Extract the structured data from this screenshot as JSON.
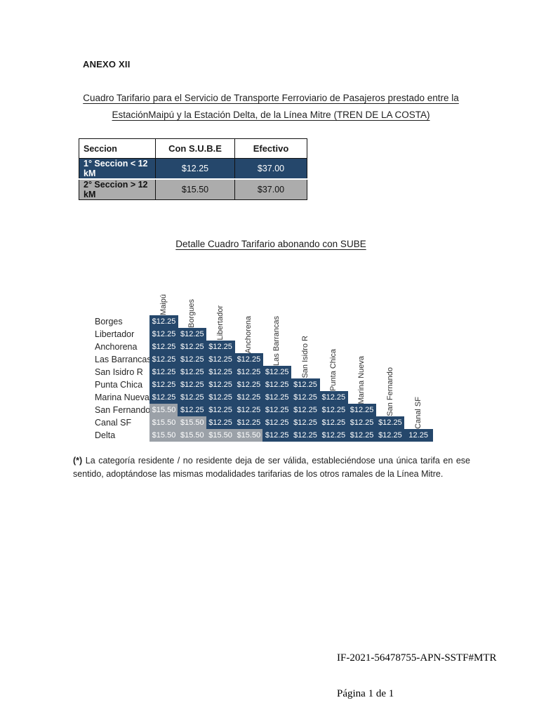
{
  "page": {
    "annex": "ANEXO XII",
    "title_line1": "Cuadro Tarifario para el Servicio de Transporte Ferroviario de Pasajeros prestado entre la",
    "title_line2": "EstaciónMaipú y la Estación Delta, de la Línea Mitre (TREN DE LA COSTA)"
  },
  "fare_table": {
    "headers": [
      "Seccion",
      "Con S.U.B.E",
      "Efectivo"
    ],
    "rows": [
      {
        "label": "1° Seccion < 12 kM",
        "con_sube": "$12.25",
        "efectivo": "$37.00"
      },
      {
        "label": "2° Seccion > 12 kM",
        "con_sube": "$15.50",
        "efectivo": "$37.00"
      }
    ]
  },
  "sube_detail": {
    "heading": "Detalle Cuadro Tarifario abonando con SUBE"
  },
  "matrix": {
    "columns": [
      "Maipú",
      "Borgues",
      "Libertador",
      "Anchorena",
      "Las Barrancas",
      "San Isidro R",
      "Punta Chica",
      "Marina Nueva",
      "San Fernando",
      "Canal SF"
    ],
    "rows": [
      {
        "label": "Borges",
        "values": [
          "$12.25"
        ]
      },
      {
        "label": "Libertador",
        "values": [
          "$12.25",
          "$12.25"
        ]
      },
      {
        "label": "Anchorena",
        "values": [
          "$12.25",
          "$12.25",
          "$12.25"
        ]
      },
      {
        "label": "Las Barrancas",
        "values": [
          "$12.25",
          "$12.25",
          "$12.25",
          "$12.25"
        ]
      },
      {
        "label": "San Isidro R",
        "values": [
          "$12.25",
          "$12.25",
          "$12.25",
          "$12.25",
          "$12.25"
        ]
      },
      {
        "label": "Punta Chica",
        "values": [
          "$12.25",
          "$12.25",
          "$12.25",
          "$12.25",
          "$12.25",
          "$12.25"
        ]
      },
      {
        "label": "Marina Nueva",
        "values": [
          "$12.25",
          "$12.25",
          "$12.25",
          "$12.25",
          "$12.25",
          "$12.25",
          "$12.25"
        ]
      },
      {
        "label": "San Fernando",
        "values": [
          "$15.50",
          "$12.25",
          "$12.25",
          "$12.25",
          "$12.25",
          "$12.25",
          "$12.25",
          "$12.25"
        ]
      },
      {
        "label": "Canal SF",
        "values": [
          "$15.50",
          "$15.50",
          "$12.25",
          "$12.25",
          "$12.25",
          "$12.25",
          "$12.25",
          "$12.25",
          "$12.25"
        ]
      },
      {
        "label": "Delta",
        "values": [
          "$15.50",
          "$15.50",
          "$15.50",
          "$15.50",
          "$12.25",
          "$12.25",
          "$12.25",
          "$12.25",
          "$12.25",
          "12.25"
        ]
      }
    ]
  },
  "footnote": {
    "marker": "(*)",
    "text": "La categoría residente / no residente deja de ser válida, estableciéndose una única tarifa en ese sentido, adoptándose las mismas modalidades tarifarias de los otros ramales de la Línea Mitre."
  },
  "footer": {
    "document_id": "IF-2021-56478755-APN-SSTF#MTR",
    "page_label": "Página 1 de 1"
  },
  "colors": {
    "navy": "#25476B",
    "matrix_gray": "#9BA1A8",
    "table_gray": "#ACACAC"
  }
}
